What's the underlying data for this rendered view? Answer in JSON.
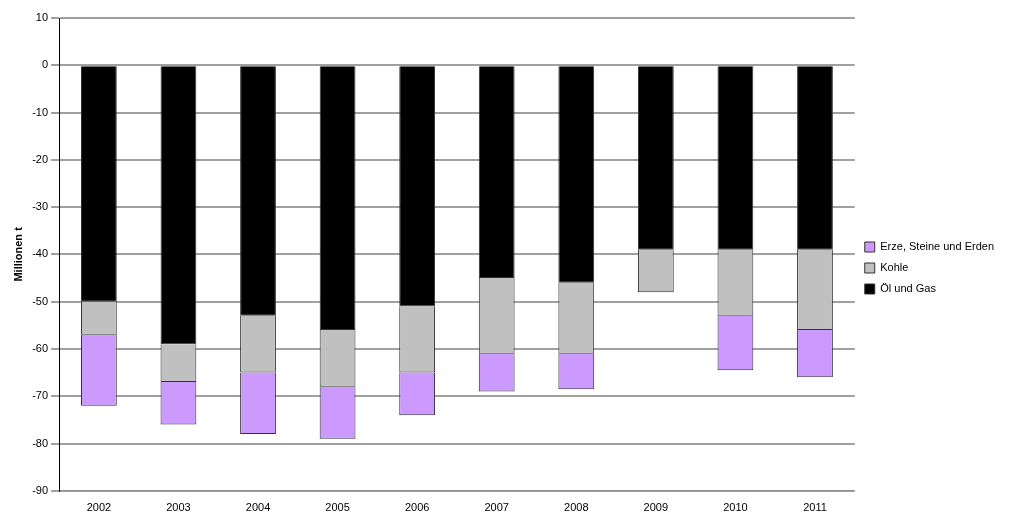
{
  "chart_data": {
    "type": "bar",
    "stacked": true,
    "ylabel": "Millionen t",
    "categories": [
      "2002",
      "2003",
      "2004",
      "2005",
      "2006",
      "2007",
      "2008",
      "2009",
      "2010",
      "2011"
    ],
    "series": [
      {
        "name": "Öl und Gas",
        "color": "#000000",
        "values": [
          -50,
          -59,
          -53,
          -56,
          -51,
          -45,
          -46,
          -39,
          -39,
          -39
        ]
      },
      {
        "name": "Kohle",
        "color": "#c0c0c0",
        "values": [
          -7,
          -8,
          -12,
          -12,
          -14,
          -16,
          -15,
          -9,
          -14,
          -17
        ]
      },
      {
        "name": "Erze, Steine und Erden",
        "color": "#cc99ff",
        "values": [
          -15,
          -9,
          -13,
          -11,
          -9,
          -8,
          -7.5,
          null,
          -11.5,
          -10
        ]
      }
    ],
    "ylim": [
      -90,
      10
    ],
    "yticks": [
      -90,
      -80,
      -70,
      -60,
      -50,
      -40,
      -30,
      -20,
      -10,
      0,
      10
    ],
    "grid": "y",
    "legend": "right"
  }
}
